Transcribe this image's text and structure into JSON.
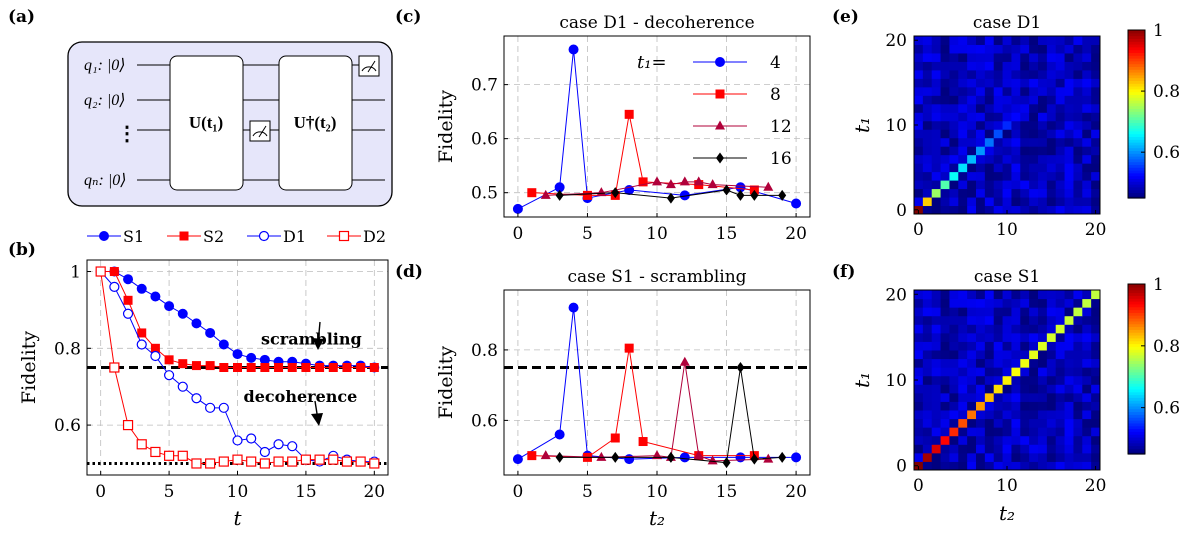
{
  "panels": {
    "a": {
      "letter": "(a)"
    },
    "b": {
      "letter": "(b)"
    },
    "c": {
      "letter": "(c)"
    },
    "d": {
      "letter": "(d)"
    },
    "e": {
      "letter": "(e)"
    },
    "f": {
      "letter": "(f)"
    }
  },
  "circuit": {
    "qubits": [
      "q₁: |0⟩",
      "q₂: |0⟩",
      "⋮",
      "qₙ: |0⟩"
    ],
    "gate_forward": "U(t₁)",
    "gate_inverse": "U†(t₂)"
  },
  "chart_data": [
    {
      "id": "b",
      "type": "line",
      "title": "",
      "xlabel": "t",
      "ylabel": "Fidelity",
      "xlim": [
        -1,
        21
      ],
      "ylim": [
        0.47,
        1.03
      ],
      "xticks": [
        0,
        5,
        10,
        15,
        20
      ],
      "yticks": [
        0.6,
        0.8,
        1
      ],
      "ytick_labels": [
        "0.6",
        "0.8",
        "1"
      ],
      "grid": true,
      "legend_position": "top",
      "series": [
        {
          "name": "S1",
          "color": "#0000ff",
          "marker": "circle-filled",
          "x": [
            0,
            1,
            2,
            3,
            4,
            5,
            6,
            7,
            8,
            9,
            10,
            11,
            12,
            13,
            14,
            15,
            16,
            17,
            18,
            19,
            20
          ],
          "values": [
            1.0,
            1.0,
            0.98,
            0.955,
            0.935,
            0.91,
            0.89,
            0.865,
            0.84,
            0.81,
            0.785,
            0.775,
            0.77,
            0.765,
            0.765,
            0.76,
            0.755,
            0.755,
            0.755,
            0.755,
            0.75
          ]
        },
        {
          "name": "S2",
          "color": "#ff0000",
          "marker": "square-filled",
          "x": [
            0,
            1,
            2,
            3,
            4,
            5,
            6,
            7,
            8,
            9,
            10,
            11,
            12,
            13,
            14,
            15,
            16,
            17,
            18,
            19,
            20
          ],
          "values": [
            1.0,
            1.0,
            0.925,
            0.84,
            0.8,
            0.77,
            0.76,
            0.755,
            0.755,
            0.75,
            0.75,
            0.75,
            0.75,
            0.75,
            0.75,
            0.75,
            0.75,
            0.75,
            0.75,
            0.75,
            0.75
          ]
        },
        {
          "name": "D1",
          "color": "#0000ff",
          "marker": "circle-open",
          "x": [
            0,
            1,
            2,
            3,
            4,
            5,
            6,
            7,
            8,
            9,
            10,
            11,
            12,
            13,
            14,
            15,
            16,
            17,
            18,
            19,
            20
          ],
          "values": [
            1.0,
            0.96,
            0.89,
            0.81,
            0.78,
            0.73,
            0.7,
            0.67,
            0.645,
            0.645,
            0.56,
            0.565,
            0.53,
            0.55,
            0.545,
            0.51,
            0.505,
            0.52,
            0.51,
            0.505,
            0.505
          ]
        },
        {
          "name": "D2",
          "color": "#ff0000",
          "marker": "square-open",
          "x": [
            0,
            1,
            2,
            3,
            4,
            5,
            6,
            7,
            8,
            9,
            10,
            11,
            12,
            13,
            14,
            15,
            16,
            17,
            18,
            19,
            20
          ],
          "values": [
            1.0,
            0.75,
            0.6,
            0.55,
            0.53,
            0.52,
            0.52,
            0.5,
            0.5,
            0.505,
            0.51,
            0.505,
            0.5,
            0.505,
            0.505,
            0.51,
            0.51,
            0.51,
            0.505,
            0.505,
            0.5
          ]
        }
      ],
      "reference_lines": [
        {
          "y": 0.75,
          "style": "dashed"
        },
        {
          "y": 0.5,
          "style": "dotted"
        }
      ],
      "annotations": [
        {
          "text": "scrambling",
          "x": 15.4,
          "y": 0.81
        },
        {
          "text": "decoherence",
          "x": 14.6,
          "y": 0.66
        }
      ]
    },
    {
      "id": "c",
      "type": "line",
      "title": "case D1 - decoherence",
      "xlabel": "",
      "ylabel": "Fidelity",
      "xlim": [
        -1,
        21
      ],
      "ylim": [
        0.455,
        0.79
      ],
      "xticks": [
        0,
        5,
        10,
        15,
        20
      ],
      "yticks": [
        0.5,
        0.6,
        0.7
      ],
      "grid": true,
      "legend_title": "t₁=",
      "legend_position": "top-right",
      "series": [
        {
          "name": "4",
          "color": "#0000ff",
          "marker": "circle-filled",
          "x": [
            0,
            3,
            4,
            5,
            8,
            12,
            16,
            20
          ],
          "values": [
            0.47,
            0.51,
            0.765,
            0.49,
            0.505,
            0.495,
            0.51,
            0.48
          ]
        },
        {
          "name": "8",
          "color": "#ff0000",
          "marker": "square-filled",
          "x": [
            1,
            5,
            7,
            8,
            9,
            13,
            17
          ],
          "values": [
            0.5,
            0.495,
            0.495,
            0.645,
            0.52,
            0.515,
            0.505
          ]
        },
        {
          "name": "12",
          "color": "#b0003a",
          "marker": "triangle-filled",
          "x": [
            2,
            6,
            10,
            11,
            12,
            13,
            14,
            18
          ],
          "values": [
            0.495,
            0.5,
            0.52,
            0.515,
            0.52,
            0.52,
            0.515,
            0.51
          ]
        },
        {
          "name": "16",
          "color": "#000000",
          "marker": "diamond-filled",
          "x": [
            3,
            7,
            11,
            15,
            16,
            17,
            19
          ],
          "values": [
            0.495,
            0.5,
            0.49,
            0.505,
            0.495,
            0.495,
            0.495
          ]
        }
      ]
    },
    {
      "id": "d",
      "type": "line",
      "title": "case S1 - scrambling",
      "xlabel": "t₂",
      "ylabel": "Fidelity",
      "xlim": [
        -1,
        21
      ],
      "ylim": [
        0.445,
        0.97
      ],
      "xticks": [
        0,
        5,
        10,
        15,
        20
      ],
      "yticks": [
        0.6,
        0.8
      ],
      "grid": true,
      "series": [
        {
          "name": "",
          "color": "#0000ff",
          "marker": "circle-filled",
          "x": [
            0,
            3,
            4,
            5,
            8,
            12,
            16,
            20
          ],
          "values": [
            0.49,
            0.56,
            0.92,
            0.5,
            0.49,
            0.495,
            0.495,
            0.495
          ]
        },
        {
          "name": "",
          "color": "#ff0000",
          "marker": "square-filled",
          "x": [
            1,
            5,
            7,
            8,
            9,
            13,
            17
          ],
          "values": [
            0.5,
            0.495,
            0.55,
            0.805,
            0.54,
            0.5,
            0.5
          ]
        },
        {
          "name": "",
          "color": "#b0003a",
          "marker": "triangle-filled",
          "x": [
            2,
            6,
            10,
            11,
            12,
            13,
            14,
            18
          ],
          "values": [
            0.5,
            0.495,
            0.5,
            0.495,
            0.765,
            0.5,
            0.485,
            0.49
          ]
        },
        {
          "name": "",
          "color": "#000000",
          "marker": "diamond-filled",
          "x": [
            3,
            7,
            11,
            15,
            16,
            17,
            19
          ],
          "values": [
            0.495,
            0.495,
            0.495,
            0.48,
            0.75,
            0.49,
            0.495
          ]
        }
      ],
      "reference_lines": [
        {
          "y": 0.75,
          "style": "dashed"
        }
      ]
    },
    {
      "id": "e",
      "type": "heatmap",
      "title": "case D1",
      "xlabel": "",
      "ylabel": "t₁",
      "size": 21,
      "xticks": [
        0,
        10,
        20
      ],
      "yticks": [
        0,
        10,
        20
      ],
      "colorbar_range": [
        0.45,
        1
      ],
      "colorbar_ticks": [
        0.6,
        0.8,
        1
      ],
      "colorbar_tick_labels": [
        "0.6",
        "0.8",
        "1"
      ],
      "diagonal": [
        1.0,
        0.82,
        0.74,
        0.7,
        0.66,
        0.64,
        0.62,
        0.6,
        0.58,
        0.56,
        0.54,
        0.52,
        0.51,
        0.5,
        0.5,
        0.49,
        0.49,
        0.48,
        0.48,
        0.48,
        0.48
      ],
      "off_diagonal_base": 0.48
    },
    {
      "id": "f",
      "type": "heatmap",
      "title": "case S1",
      "xlabel": "t₂",
      "ylabel": "t₁",
      "size": 21,
      "xticks": [
        0,
        10,
        20
      ],
      "yticks": [
        0,
        10,
        20
      ],
      "colorbar_range": [
        0.45,
        1
      ],
      "colorbar_ticks": [
        0.6,
        0.8,
        1
      ],
      "colorbar_tick_labels": [
        "0.6",
        "0.8",
        "1"
      ],
      "diagonal": [
        1.0,
        0.98,
        0.95,
        0.93,
        0.91,
        0.89,
        0.87,
        0.85,
        0.83,
        0.81,
        0.8,
        0.79,
        0.785,
        0.78,
        0.775,
        0.77,
        0.77,
        0.765,
        0.76,
        0.76,
        0.76
      ],
      "off_diagonal_base": 0.48
    }
  ]
}
